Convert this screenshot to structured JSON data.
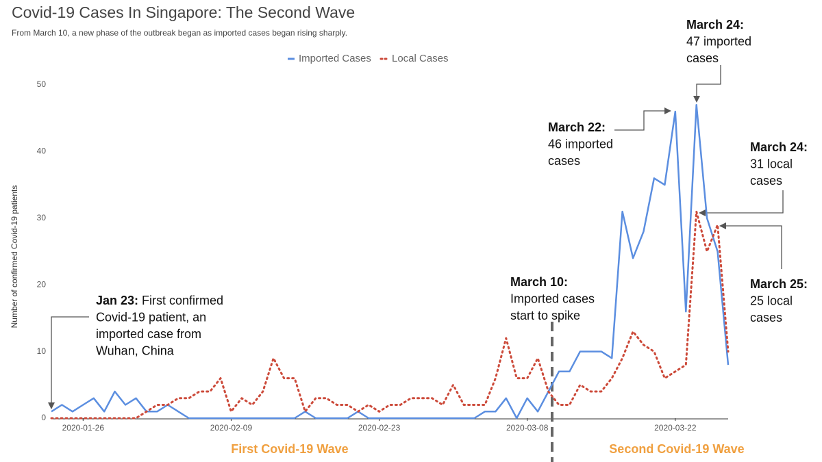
{
  "chart_data": {
    "type": "line",
    "title": "Covid-19 Cases In Singapore: The Second Wave",
    "subtitle": "From March 10, a new phase of the outbreak began as imported cases began rising sharply.",
    "y_label": "Number of confirmed Covid-19 patients",
    "x": [
      "2020-01-23",
      "2020-01-24",
      "2020-01-25",
      "2020-01-26",
      "2020-01-27",
      "2020-01-28",
      "2020-01-29",
      "2020-01-30",
      "2020-01-31",
      "2020-02-01",
      "2020-02-02",
      "2020-02-03",
      "2020-02-04",
      "2020-02-05",
      "2020-02-06",
      "2020-02-07",
      "2020-02-08",
      "2020-02-09",
      "2020-02-10",
      "2020-02-11",
      "2020-02-12",
      "2020-02-13",
      "2020-02-14",
      "2020-02-15",
      "2020-02-16",
      "2020-02-17",
      "2020-02-18",
      "2020-02-19",
      "2020-02-20",
      "2020-02-21",
      "2020-02-22",
      "2020-02-23",
      "2020-02-24",
      "2020-02-25",
      "2020-02-26",
      "2020-02-27",
      "2020-02-28",
      "2020-02-29",
      "2020-03-01",
      "2020-03-02",
      "2020-03-03",
      "2020-03-04",
      "2020-03-05",
      "2020-03-06",
      "2020-03-07",
      "2020-03-08",
      "2020-03-09",
      "2020-03-10",
      "2020-03-11",
      "2020-03-12",
      "2020-03-13",
      "2020-03-14",
      "2020-03-15",
      "2020-03-16",
      "2020-03-17",
      "2020-03-18",
      "2020-03-19",
      "2020-03-20",
      "2020-03-21",
      "2020-03-22",
      "2020-03-23",
      "2020-03-24",
      "2020-03-25",
      "2020-03-26",
      "2020-03-27"
    ],
    "series": [
      {
        "name": "Imported Cases",
        "color": "#5b8ee0",
        "dash": false,
        "values": [
          1,
          2,
          1,
          2,
          3,
          1,
          4,
          2,
          3,
          1,
          1,
          2,
          1,
          0,
          0,
          0,
          0,
          0,
          0,
          0,
          0,
          0,
          0,
          0,
          1,
          0,
          0,
          0,
          0,
          1,
          0,
          0,
          0,
          0,
          0,
          0,
          0,
          0,
          0,
          0,
          0,
          1,
          1,
          3,
          0,
          3,
          1,
          4,
          7,
          7,
          10,
          10,
          10,
          9,
          31,
          24,
          28,
          36,
          35,
          46,
          16,
          47,
          30,
          25,
          8
        ]
      },
      {
        "name": "Local Cases",
        "color": "#cc4a3a",
        "dash": true,
        "values": [
          0,
          0,
          0,
          0,
          0,
          0,
          0,
          0,
          0,
          1,
          2,
          2,
          3,
          3,
          4,
          4,
          6,
          1,
          3,
          2,
          4,
          9,
          6,
          6,
          1,
          3,
          3,
          2,
          2,
          1,
          2,
          1,
          2,
          2,
          3,
          3,
          3,
          2,
          5,
          2,
          2,
          2,
          6,
          12,
          6,
          6,
          9,
          4,
          2,
          2,
          5,
          4,
          4,
          6,
          9,
          13,
          11,
          10,
          6,
          7,
          8,
          31,
          25,
          29,
          10
        ]
      }
    ],
    "xlim": [
      "2020-01-23",
      "2020-03-27"
    ],
    "xticks": [
      "2020-01-26",
      "2020-02-09",
      "2020-02-23",
      "2020-03-08",
      "2020-03-22"
    ],
    "ylim": [
      0,
      50
    ],
    "yticks": [
      0,
      10,
      20,
      30,
      40,
      50
    ],
    "legend": "top",
    "wave_labels": [
      "First Covid-19 Wave",
      "Second Covid-19 Wave"
    ],
    "annotations": [
      {
        "title": "Jan 23:",
        "lines": [
          "First confirmed",
          "Covid-19 patient, an",
          "imported case from",
          "Wuhan, China"
        ]
      },
      {
        "title": "March 10:",
        "lines": [
          "Imported cases",
          "start to spike"
        ]
      },
      {
        "title": "March 22:",
        "lines": [
          "46 imported",
          "cases"
        ]
      },
      {
        "title": "March 24:",
        "lines": [
          "47 imported",
          "cases"
        ]
      },
      {
        "title": "March 24:",
        "lines": [
          "31 local",
          "cases"
        ]
      },
      {
        "title": "March 25:",
        "lines": [
          "25 local",
          "cases"
        ]
      }
    ]
  }
}
